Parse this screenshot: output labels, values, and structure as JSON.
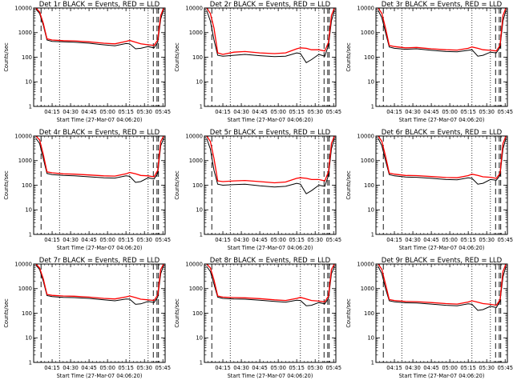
{
  "figure": {
    "background": "#ffffff",
    "colors": {
      "events": "#000000",
      "lld": "#ff0000",
      "axes": "#000000"
    }
  },
  "chart_data": [
    {
      "type": "line",
      "title": "Det 1r BLACK = Events, RED = LLD",
      "xlabel": "Start Time (27-Mar-07 04:06:20)",
      "ylabel": "Counts/sec",
      "xlim": [
        4.0,
        5.78
      ],
      "x_tick_labels": [
        "04:15",
        "04:30",
        "04:45",
        "05:00",
        "05:15",
        "05:30",
        "05:45"
      ],
      "x_tick_values": [
        4.25,
        4.5,
        4.75,
        5.0,
        5.25,
        5.5,
        5.75
      ],
      "yscale": "log",
      "ylim": [
        1,
        10000
      ],
      "y_tick_labels": [
        "1",
        "10",
        "100",
        "1000",
        "10000"
      ],
      "y_tick_values": [
        1,
        10,
        100,
        1000,
        10000
      ],
      "x": [
        4.03,
        4.08,
        4.13,
        4.18,
        4.25,
        4.4,
        4.55,
        4.75,
        4.95,
        5.1,
        5.25,
        5.3,
        5.38,
        5.45,
        5.55,
        5.63,
        5.68,
        5.72,
        5.76
      ],
      "series": [
        {
          "name": "Events",
          "color": "#000000",
          "values": [
            9000,
            6000,
            2000,
            500,
            440,
            420,
            410,
            370,
            320,
            290,
            360,
            350,
            220,
            230,
            270,
            240,
            400,
            3500,
            9000
          ]
        },
        {
          "name": "LLD",
          "color": "#ff0000",
          "values": [
            10000,
            7000,
            2400,
            560,
            500,
            470,
            460,
            420,
            370,
            350,
            440,
            480,
            410,
            350,
            320,
            300,
            500,
            5000,
            10000
          ]
        }
      ],
      "dashed_vlines": [
        4.1,
        5.62,
        5.67,
        5.69
      ],
      "dotted_vlines": [
        4.35,
        5.3,
        5.55
      ]
    },
    {
      "type": "line",
      "title": "Det 2r BLACK = Events, RED = LLD",
      "xlabel": "Start Time (27-Mar-07 04:06:20)",
      "ylabel": "Counts/sec",
      "xlim": [
        4.0,
        5.78
      ],
      "x_tick_labels": [
        "04:15",
        "04:30",
        "04:45",
        "05:00",
        "05:15",
        "05:30",
        "05:45"
      ],
      "x_tick_values": [
        4.25,
        4.5,
        4.75,
        5.0,
        5.25,
        5.5,
        5.75
      ],
      "yscale": "log",
      "ylim": [
        1,
        10000
      ],
      "y_tick_labels": [
        "1",
        "10",
        "100",
        "1000",
        "10000"
      ],
      "y_tick_values": [
        1,
        10,
        100,
        1000,
        10000
      ],
      "x": [
        4.03,
        4.08,
        4.13,
        4.18,
        4.25,
        4.4,
        4.55,
        4.75,
        4.95,
        5.1,
        5.25,
        5.3,
        5.38,
        5.45,
        5.55,
        5.63,
        5.68,
        5.72,
        5.76
      ],
      "series": [
        {
          "name": "Events",
          "color": "#000000",
          "values": [
            8000,
            3000,
            500,
            120,
            110,
            120,
            130,
            115,
            105,
            110,
            150,
            140,
            60,
            80,
            130,
            110,
            300,
            3000,
            8000
          ]
        },
        {
          "name": "LLD",
          "color": "#ff0000",
          "values": [
            10000,
            6000,
            1500,
            150,
            130,
            160,
            170,
            150,
            140,
            150,
            220,
            240,
            230,
            200,
            200,
            180,
            400,
            5000,
            10000
          ]
        }
      ],
      "dashed_vlines": [
        4.1,
        5.62,
        5.67,
        5.69
      ],
      "dotted_vlines": [
        4.35,
        5.3,
        5.55
      ]
    },
    {
      "type": "line",
      "title": "Det 3r BLACK = Events, RED = LLD",
      "xlabel": "Start Time (27-Mar-07 04:06:20)",
      "ylabel": "Counts/sec",
      "xlim": [
        4.0,
        5.78
      ],
      "x_tick_labels": [
        "04:15",
        "04:30",
        "04:45",
        "05:00",
        "05:15",
        "05:30",
        "05:45"
      ],
      "x_tick_values": [
        4.25,
        4.5,
        4.75,
        5.0,
        5.25,
        5.5,
        5.75
      ],
      "yscale": "log",
      "ylim": [
        1,
        10000
      ],
      "y_tick_labels": [
        "1",
        "10",
        "100",
        "1000",
        "10000"
      ],
      "y_tick_values": [
        1,
        10,
        100,
        1000,
        10000
      ],
      "x": [
        4.03,
        4.08,
        4.13,
        4.18,
        4.25,
        4.4,
        4.55,
        4.75,
        4.95,
        5.1,
        5.25,
        5.3,
        5.38,
        5.45,
        5.55,
        5.63,
        5.68,
        5.72,
        5.76
      ],
      "series": [
        {
          "name": "Events",
          "color": "#000000",
          "values": [
            8000,
            4000,
            1000,
            260,
            230,
            210,
            220,
            190,
            170,
            165,
            190,
            200,
            110,
            120,
            160,
            150,
            250,
            3000,
            8000
          ]
        },
        {
          "name": "LLD",
          "color": "#ff0000",
          "values": [
            10000,
            6000,
            1500,
            300,
            270,
            240,
            250,
            220,
            200,
            195,
            230,
            260,
            230,
            200,
            190,
            180,
            300,
            5000,
            10000
          ]
        }
      ],
      "dashed_vlines": [
        4.1,
        5.62,
        5.67,
        5.69
      ],
      "dotted_vlines": [
        4.35,
        5.3,
        5.55
      ]
    },
    {
      "type": "line",
      "title": "Det 4r BLACK = Events, RED = LLD",
      "xlabel": "Start Time (27-Mar-07 04:06:20)",
      "ylabel": "Counts/sec",
      "xlim": [
        4.0,
        5.78
      ],
      "x_tick_labels": [
        "04:15",
        "04:30",
        "04:45",
        "05:00",
        "05:15",
        "05:30",
        "05:45"
      ],
      "x_tick_values": [
        4.25,
        4.5,
        4.75,
        5.0,
        5.25,
        5.5,
        5.75
      ],
      "yscale": "log",
      "ylim": [
        1,
        10000
      ],
      "y_tick_labels": [
        "1",
        "10",
        "100",
        "1000",
        "10000"
      ],
      "y_tick_values": [
        1,
        10,
        100,
        1000,
        10000
      ],
      "x": [
        4.03,
        4.08,
        4.13,
        4.18,
        4.25,
        4.4,
        4.55,
        4.75,
        4.95,
        5.1,
        5.25,
        5.3,
        5.38,
        5.45,
        5.55,
        5.63,
        5.68,
        5.72,
        5.76
      ],
      "series": [
        {
          "name": "Events",
          "color": "#000000",
          "values": [
            8000,
            5000,
            1200,
            300,
            270,
            250,
            240,
            220,
            200,
            195,
            240,
            230,
            130,
            140,
            200,
            180,
            300,
            4000,
            8000
          ]
        },
        {
          "name": "LLD",
          "color": "#ff0000",
          "values": [
            10000,
            7000,
            1800,
            350,
            320,
            290,
            280,
            260,
            240,
            235,
            290,
            330,
            290,
            250,
            240,
            220,
            400,
            6000,
            10000
          ]
        }
      ],
      "dashed_vlines": [
        4.1,
        5.62,
        5.67,
        5.69
      ],
      "dotted_vlines": [
        4.35,
        5.3,
        5.55
      ]
    },
    {
      "type": "line",
      "title": "Det 5r BLACK = Events, RED = LLD",
      "xlabel": "Start Time (27-Mar-07 04:06:20)",
      "ylabel": "Counts/sec",
      "xlim": [
        4.0,
        5.78
      ],
      "x_tick_labels": [
        "04:15",
        "04:30",
        "04:45",
        "05:00",
        "05:15",
        "05:30",
        "05:45"
      ],
      "x_tick_values": [
        4.25,
        4.5,
        4.75,
        5.0,
        5.25,
        5.5,
        5.75
      ],
      "yscale": "log",
      "ylim": [
        1,
        10000
      ],
      "y_tick_labels": [
        "1",
        "10",
        "100",
        "1000",
        "10000"
      ],
      "y_tick_values": [
        1,
        10,
        100,
        1000,
        10000
      ],
      "x": [
        4.03,
        4.08,
        4.13,
        4.18,
        4.25,
        4.4,
        4.55,
        4.75,
        4.95,
        5.1,
        5.25,
        5.3,
        5.38,
        5.45,
        5.55,
        5.63,
        5.68,
        5.72,
        5.76
      ],
      "series": [
        {
          "name": "Events",
          "color": "#000000",
          "values": [
            8000,
            3000,
            400,
            110,
            100,
            105,
            110,
            95,
            85,
            90,
            120,
            110,
            45,
            60,
            100,
            90,
            250,
            3000,
            8000
          ]
        },
        {
          "name": "LLD",
          "color": "#ff0000",
          "values": [
            10000,
            6000,
            1200,
            150,
            140,
            150,
            155,
            140,
            125,
            135,
            190,
            200,
            190,
            170,
            170,
            150,
            350,
            5000,
            10000
          ]
        }
      ],
      "dashed_vlines": [
        4.1,
        5.62,
        5.67,
        5.69
      ],
      "dotted_vlines": [
        4.35,
        5.3,
        5.55
      ]
    },
    {
      "type": "line",
      "title": "Det 6r BLACK = Events, RED = LLD",
      "xlabel": "Start Time (27-Mar-07 04:06:20)",
      "ylabel": "Counts/sec",
      "xlim": [
        4.0,
        5.78
      ],
      "x_tick_labels": [
        "04:15",
        "04:30",
        "04:45",
        "05:00",
        "05:15",
        "05:30",
        "05:45"
      ],
      "x_tick_values": [
        4.25,
        4.5,
        4.75,
        5.0,
        5.25,
        5.5,
        5.75
      ],
      "yscale": "log",
      "ylim": [
        1,
        10000
      ],
      "y_tick_labels": [
        "1",
        "10",
        "100",
        "1000",
        "10000"
      ],
      "y_tick_values": [
        1,
        10,
        100,
        1000,
        10000
      ],
      "x": [
        4.03,
        4.08,
        4.13,
        4.18,
        4.25,
        4.4,
        4.55,
        4.75,
        4.95,
        5.1,
        5.25,
        5.3,
        5.38,
        5.45,
        5.55,
        5.63,
        5.68,
        5.72,
        5.76
      ],
      "series": [
        {
          "name": "Events",
          "color": "#000000",
          "values": [
            8000,
            4000,
            1000,
            270,
            240,
            215,
            210,
            190,
            170,
            165,
            200,
            190,
            110,
            120,
            170,
            160,
            250,
            3000,
            8000
          ]
        },
        {
          "name": "LLD",
          "color": "#ff0000",
          "values": [
            10000,
            6000,
            1500,
            310,
            280,
            250,
            245,
            225,
            205,
            200,
            245,
            280,
            250,
            220,
            210,
            190,
            300,
            5000,
            10000
          ]
        }
      ],
      "dashed_vlines": [
        4.1,
        5.62,
        5.67,
        5.69
      ],
      "dotted_vlines": [
        4.35,
        5.3,
        5.55
      ]
    },
    {
      "type": "line",
      "title": "Det 7r BLACK = Events, RED = LLD",
      "xlabel": "Start Time (27-Mar-07 04:06:20)",
      "ylabel": "Counts/sec",
      "xlim": [
        4.0,
        5.78
      ],
      "x_tick_labels": [
        "04:15",
        "04:30",
        "04:45",
        "05:00",
        "05:15",
        "05:30",
        "05:45"
      ],
      "x_tick_values": [
        4.25,
        4.5,
        4.75,
        5.0,
        5.25,
        5.5,
        5.75
      ],
      "yscale": "log",
      "ylim": [
        1,
        10000
      ],
      "y_tick_labels": [
        "1",
        "10",
        "100",
        "1000",
        "10000"
      ],
      "y_tick_values": [
        1,
        10,
        100,
        1000,
        10000
      ],
      "x": [
        4.03,
        4.08,
        4.13,
        4.18,
        4.25,
        4.4,
        4.55,
        4.75,
        4.95,
        5.1,
        5.25,
        5.3,
        5.38,
        5.45,
        5.55,
        5.63,
        5.68,
        5.72,
        5.76
      ],
      "series": [
        {
          "name": "Events",
          "color": "#000000",
          "values": [
            9000,
            6000,
            2000,
            520,
            470,
            440,
            430,
            400,
            350,
            320,
            380,
            370,
            230,
            240,
            300,
            270,
            450,
            4000,
            9000
          ]
        },
        {
          "name": "LLD",
          "color": "#ff0000",
          "values": [
            10000,
            7000,
            2500,
            580,
            530,
            500,
            490,
            450,
            400,
            380,
            460,
            500,
            430,
            370,
            350,
            330,
            550,
            6000,
            10000
          ]
        }
      ],
      "dashed_vlines": [
        4.1,
        5.62,
        5.67,
        5.69
      ],
      "dotted_vlines": [
        4.35,
        5.3,
        5.55
      ]
    },
    {
      "type": "line",
      "title": "Det 8r BLACK = Events, RED = LLD",
      "xlabel": "Start Time (27-Mar-07 04:06:20)",
      "ylabel": "Counts/sec",
      "xlim": [
        4.0,
        5.78
      ],
      "x_tick_labels": [
        "04:15",
        "04:30",
        "04:45",
        "05:00",
        "05:15",
        "05:30",
        "05:45"
      ],
      "x_tick_values": [
        4.25,
        4.5,
        4.75,
        5.0,
        5.25,
        5.5,
        5.75
      ],
      "yscale": "log",
      "ylim": [
        1,
        10000
      ],
      "y_tick_labels": [
        "1",
        "10",
        "100",
        "1000",
        "10000"
      ],
      "y_tick_values": [
        1,
        10,
        100,
        1000,
        10000
      ],
      "x": [
        4.03,
        4.08,
        4.13,
        4.18,
        4.25,
        4.4,
        4.55,
        4.75,
        4.95,
        5.1,
        5.25,
        5.3,
        5.38,
        5.45,
        5.55,
        5.63,
        5.68,
        5.72,
        5.76
      ],
      "series": [
        {
          "name": "Events",
          "color": "#000000",
          "values": [
            8000,
            5000,
            1500,
            450,
            400,
            380,
            370,
            340,
            300,
            280,
            340,
            330,
            200,
            210,
            270,
            240,
            400,
            4000,
            8000
          ]
        },
        {
          "name": "LLD",
          "color": "#ff0000",
          "values": [
            10000,
            7000,
            2200,
            500,
            450,
            430,
            420,
            390,
            350,
            330,
            400,
            440,
            380,
            330,
            310,
            290,
            500,
            6000,
            10000
          ]
        }
      ],
      "dashed_vlines": [
        4.1,
        5.62,
        5.67,
        5.69
      ],
      "dotted_vlines": [
        4.35,
        5.3,
        5.55
      ]
    },
    {
      "type": "line",
      "title": "Det 9r BLACK = Events, RED = LLD",
      "xlabel": "Start Time (27-Mar-07 04:06:20)",
      "ylabel": "Counts/sec",
      "xlim": [
        4.0,
        5.78
      ],
      "x_tick_labels": [
        "04:15",
        "04:30",
        "04:45",
        "05:00",
        "05:15",
        "05:30",
        "05:45"
      ],
      "x_tick_values": [
        4.25,
        4.5,
        4.75,
        5.0,
        5.25,
        5.5,
        5.75
      ],
      "yscale": "log",
      "ylim": [
        1,
        10000
      ],
      "y_tick_labels": [
        "1",
        "10",
        "100",
        "1000",
        "10000"
      ],
      "y_tick_values": [
        1,
        10,
        100,
        1000,
        10000
      ],
      "x": [
        4.03,
        4.08,
        4.13,
        4.18,
        4.25,
        4.4,
        4.55,
        4.75,
        4.95,
        5.1,
        5.25,
        5.3,
        5.38,
        5.45,
        5.55,
        5.63,
        5.68,
        5.72,
        5.76
      ],
      "series": [
        {
          "name": "Events",
          "color": "#000000",
          "values": [
            8000,
            4000,
            1000,
            320,
            290,
            265,
            260,
            235,
            210,
            200,
            240,
            230,
            130,
            140,
            190,
            170,
            300,
            3000,
            8000
          ]
        },
        {
          "name": "LLD",
          "color": "#ff0000",
          "values": [
            10000,
            6000,
            1500,
            360,
            330,
            300,
            295,
            270,
            245,
            235,
            285,
            320,
            280,
            245,
            230,
            210,
            350,
            5000,
            10000
          ]
        }
      ],
      "dashed_vlines": [
        4.1,
        5.62,
        5.67,
        5.69
      ],
      "dotted_vlines": [
        4.35,
        5.3,
        5.55
      ]
    }
  ]
}
